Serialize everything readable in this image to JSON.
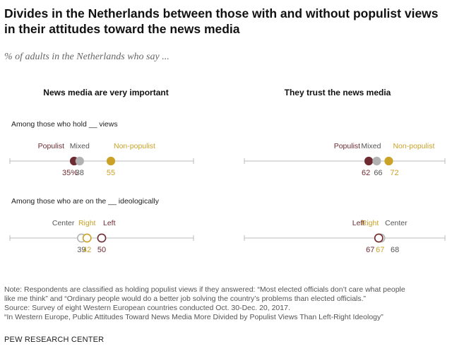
{
  "title": "Divides in the Netherlands between those with and without populist views in their attitudes toward the news media",
  "subtitle": "% of adults in the Netherlands who say ...",
  "colors": {
    "populist": "#6e2b32",
    "mixed": "#b2b2b2",
    "non_populist": "#c9a227",
    "left": "#6e2b32",
    "right": "#c9a227",
    "center": "#b2b2b2",
    "axis": "#bbbbbb",
    "label_gray": "#555555"
  },
  "chart_data": {
    "type": "scatter",
    "panels": [
      {
        "title": "News media are very important"
      },
      {
        "title": "They trust the news media"
      }
    ],
    "groups": [
      {
        "label": "Among those who hold __ views",
        "series": [
          {
            "name": "Populist",
            "values": [
              35,
              62
            ],
            "value_labels": [
              "35%",
              "62"
            ],
            "color_key": "populist"
          },
          {
            "name": "Mixed",
            "values": [
              38,
              66
            ],
            "value_labels": [
              "38",
              "66"
            ],
            "color_key": "mixed"
          },
          {
            "name": "Non-populist",
            "values": [
              55,
              72
            ],
            "value_labels": [
              "55",
              "72"
            ],
            "color_key": "non_populist"
          }
        ]
      },
      {
        "label": "Among those who are on the __ ideologically",
        "series": [
          {
            "name": "Center",
            "values": [
              39,
              68
            ],
            "value_labels": [
              "39",
              "68"
            ],
            "color_key": "center"
          },
          {
            "name": "Right",
            "values": [
              42,
              67
            ],
            "value_labels": [
              "42",
              "67"
            ],
            "color_key": "right"
          },
          {
            "name": "Left",
            "values": [
              50,
              67
            ],
            "value_labels": [
              "50",
              "67"
            ],
            "color_key": "left"
          }
        ]
      }
    ],
    "xlim": [
      0,
      100
    ]
  },
  "notes": [
    "Note: Respondents are classified as holding populist views if they answered: “Most elected officials don’t care what people",
    "like me think” and “Ordinary people would do a better job solving the country’s problems than elected officials.”",
    "Source: Survey of eight Western European countries conducted Oct. 30-Dec. 20, 2017.",
    "“In Western Europe, Public Attitudes Toward News Media More Divided by Populist Views Than Left-Right Ideology”"
  ],
  "footer": "PEW RESEARCH CENTER"
}
